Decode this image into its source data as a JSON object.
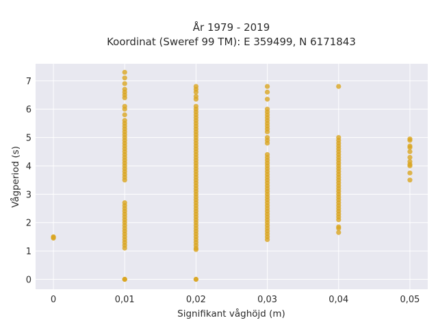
{
  "chart_data": {
    "type": "scatter",
    "title": "År 1979 - 2019",
    "subtitle": "Koordinat (Sweref 99 TM): E 359499, N 6171843",
    "xlabel": "Signifikant våghöjd (m)",
    "ylabel": "Vågperiod (s)",
    "xlim": [
      -0.0025,
      0.0525
    ],
    "ylim": [
      -0.35,
      7.6
    ],
    "x_ticks": [
      0,
      0.01,
      0.02,
      0.03,
      0.04,
      0.05
    ],
    "x_tick_labels": [
      "0",
      "0,01",
      "0,02",
      "0,03",
      "0,04",
      "0,05"
    ],
    "y_ticks": [
      0,
      1,
      2,
      3,
      4,
      5,
      6,
      7
    ],
    "y_tick_labels": [
      "0",
      "1",
      "2",
      "3",
      "4",
      "5",
      "6",
      "7"
    ],
    "grid": true,
    "marker_color": "#DAA520",
    "background_color": "#E8E8F0",
    "columns": [
      {
        "x": 0.0,
        "y": [
          1.45,
          1.48,
          1.5
        ]
      },
      {
        "x": 0.01,
        "y": [
          0.0,
          0.0,
          0.0,
          1.1,
          1.2,
          1.3,
          1.4,
          1.5,
          1.6,
          1.7,
          1.8,
          1.9,
          2.0,
          2.1,
          2.2,
          2.3,
          2.4,
          2.5,
          2.6,
          2.7,
          3.5,
          3.6,
          3.7,
          3.8,
          3.9,
          4.0,
          4.1,
          4.2,
          4.3,
          4.4,
          4.5,
          4.6,
          4.7,
          4.8,
          4.9,
          5.0,
          5.1,
          5.2,
          5.3,
          5.4,
          5.5,
          5.6,
          5.8,
          6.0,
          6.1,
          6.4,
          6.5,
          6.6,
          6.7,
          6.9,
          7.1,
          7.3
        ]
      },
      {
        "x": 0.02,
        "y": [
          0.0,
          0.0,
          1.05,
          1.1,
          1.2,
          1.3,
          1.4,
          1.5,
          1.6,
          1.7,
          1.8,
          1.9,
          2.0,
          2.1,
          2.2,
          2.3,
          2.4,
          2.5,
          2.6,
          2.7,
          2.8,
          2.9,
          3.0,
          3.1,
          3.2,
          3.3,
          3.4,
          3.5,
          3.6,
          3.7,
          3.8,
          3.9,
          4.0,
          4.1,
          4.2,
          4.3,
          4.4,
          4.5,
          4.6,
          4.7,
          4.8,
          4.9,
          5.0,
          5.1,
          5.2,
          5.3,
          5.4,
          5.5,
          5.6,
          5.7,
          5.8,
          5.9,
          6.0,
          6.1,
          6.35,
          6.45,
          6.6,
          6.7,
          6.8
        ]
      },
      {
        "x": 0.03,
        "y": [
          1.4,
          1.5,
          1.6,
          1.7,
          1.8,
          1.9,
          2.0,
          2.1,
          2.2,
          2.3,
          2.4,
          2.5,
          2.6,
          2.7,
          2.8,
          2.9,
          3.0,
          3.1,
          3.2,
          3.3,
          3.4,
          3.5,
          3.6,
          3.7,
          3.8,
          3.9,
          4.0,
          4.1,
          4.2,
          4.3,
          4.4,
          4.8,
          4.9,
          5.0,
          5.2,
          5.3,
          5.4,
          5.5,
          5.6,
          5.7,
          5.8,
          5.9,
          6.0,
          6.35,
          6.6,
          6.8
        ]
      },
      {
        "x": 0.04,
        "y": [
          1.65,
          1.8,
          1.85,
          2.1,
          2.2,
          2.3,
          2.4,
          2.5,
          2.6,
          2.7,
          2.8,
          2.9,
          3.0,
          3.1,
          3.2,
          3.3,
          3.4,
          3.5,
          3.6,
          3.7,
          3.8,
          3.9,
          4.0,
          4.1,
          4.2,
          4.3,
          4.4,
          4.5,
          4.6,
          4.7,
          4.8,
          4.9,
          5.0,
          6.8
        ]
      },
      {
        "x": 0.05,
        "y": [
          3.5,
          3.75,
          4.0,
          4.05,
          4.15,
          4.3,
          4.5,
          4.65,
          4.7,
          4.9,
          4.95
        ]
      }
    ]
  }
}
